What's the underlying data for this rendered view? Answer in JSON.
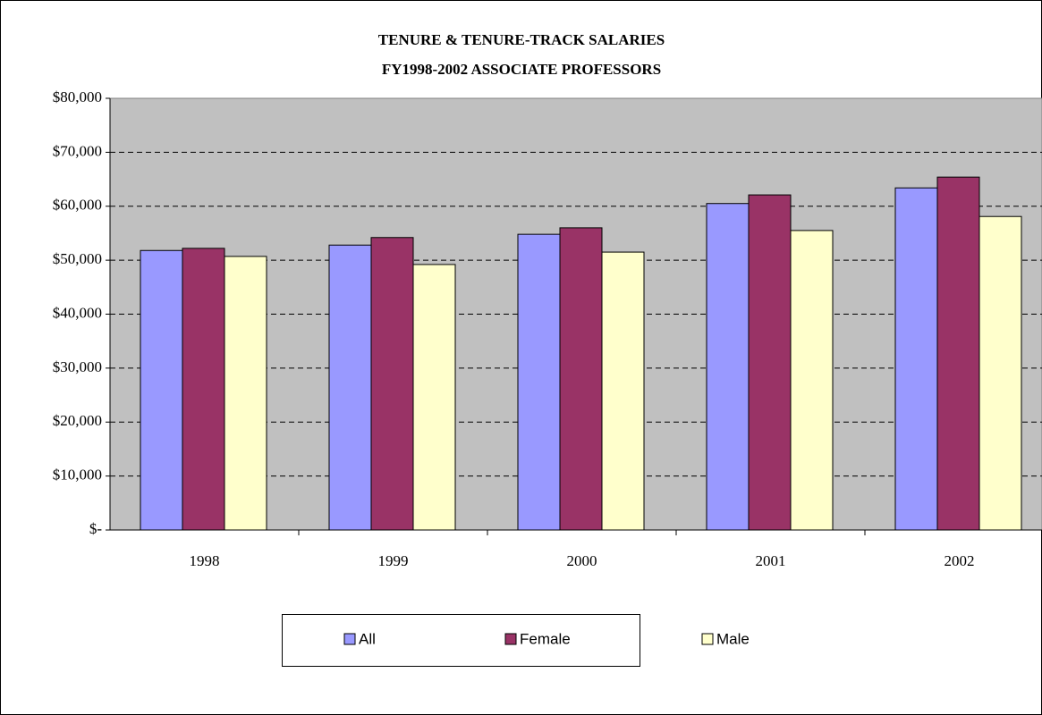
{
  "chart_data": {
    "type": "bar",
    "title": [
      "TENURE & TENURE-TRACK SALARIES",
      "FY1998-2002 ASSOCIATE PROFESSORS"
    ],
    "categories": [
      "1998",
      "1999",
      "2000",
      "2001",
      "2002"
    ],
    "series": [
      {
        "name": "All",
        "color": "#9999ff",
        "values": [
          51800,
          52800,
          54800,
          60500,
          63400
        ]
      },
      {
        "name": "Female",
        "color": "#993366",
        "values": [
          52200,
          54200,
          56000,
          62100,
          65400
        ]
      },
      {
        "name": "Male",
        "color": "#ffffcc",
        "values": [
          50700,
          49200,
          51500,
          55500,
          58100
        ]
      }
    ],
    "ylim": [
      0,
      80000
    ],
    "yticks": [
      {
        "value": 0,
        "label": "$-"
      },
      {
        "value": 10000,
        "label": "$10,000"
      },
      {
        "value": 20000,
        "label": "$20,000"
      },
      {
        "value": 30000,
        "label": "$30,000"
      },
      {
        "value": 40000,
        "label": "$40,000"
      },
      {
        "value": 50000,
        "label": "$50,000"
      },
      {
        "value": 60000,
        "label": "$60,000"
      },
      {
        "value": 70000,
        "label": "$70,000"
      },
      {
        "value": 80000,
        "label": "$80,000"
      }
    ],
    "grid": true,
    "plot_background": "#c0c0c0",
    "legend": "bottom"
  }
}
